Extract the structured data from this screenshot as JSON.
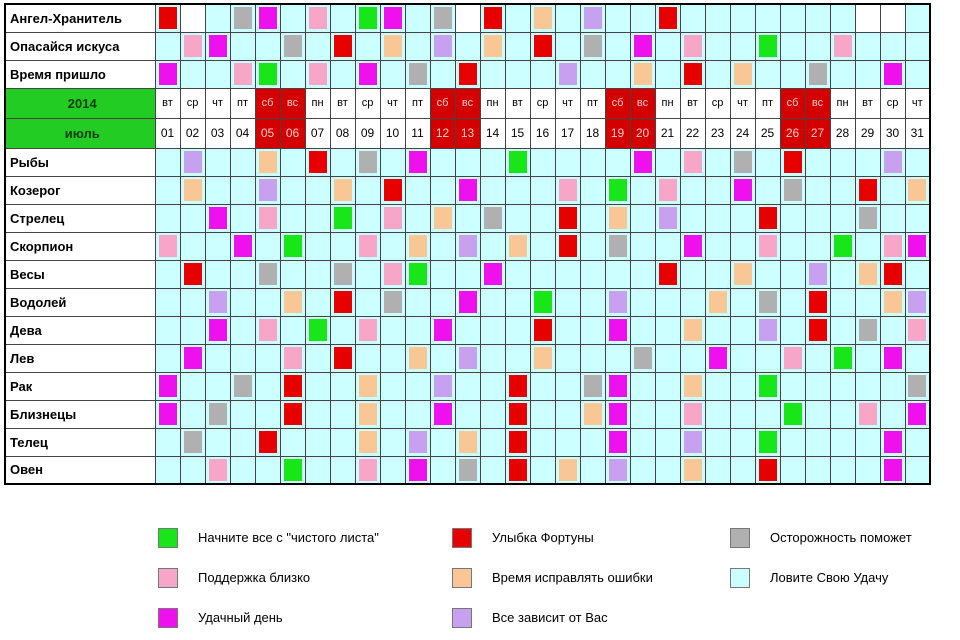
{
  "colors": {
    "G": "#19e619",
    "R": "#e60000",
    "Y": "#b0b0b0",
    "P": "#f7a6c8",
    "O": "#f9c796",
    "C": "#ccffff",
    "M": "#ee11ee",
    "L": "#c8a0f0",
    "W": "#ffffff"
  },
  "header": {
    "year": "2014",
    "month": "июль",
    "weekdays": [
      "вт",
      "ср",
      "чт",
      "пт",
      "сб",
      "вс",
      "пн",
      "вт",
      "ср",
      "чт",
      "пт",
      "сб",
      "вс",
      "пн",
      "вт",
      "ср",
      "чт",
      "пт",
      "сб",
      "вс",
      "пн",
      "вт",
      "ср",
      "чт",
      "пт",
      "сб",
      "вс",
      "пн",
      "вт",
      "ср",
      "чт"
    ],
    "dates": [
      "01",
      "02",
      "03",
      "04",
      "05",
      "06",
      "07",
      "08",
      "09",
      "10",
      "11",
      "12",
      "13",
      "14",
      "15",
      "16",
      "17",
      "18",
      "19",
      "20",
      "21",
      "22",
      "23",
      "24",
      "25",
      "26",
      "27",
      "28",
      "29",
      "30",
      "31"
    ],
    "weekend_flags": [
      0,
      0,
      0,
      0,
      1,
      1,
      0,
      0,
      0,
      0,
      0,
      1,
      1,
      0,
      0,
      0,
      0,
      0,
      1,
      1,
      0,
      0,
      0,
      0,
      0,
      1,
      1,
      0,
      0,
      0,
      0
    ]
  },
  "rows_top": [
    {
      "label": "Ангел-Хранитель",
      "cells": "RWCYMCPCGMCYWRCOCLCCRCCCCCCCWWC"
    },
    {
      "label": "Опасайся искуса",
      "cells": "CPMCCYCRCOCLCOCRCYCMCPCCGCCPCCC"
    },
    {
      "label": "Время пришло",
      "cells": "MCCPGCPCMCYCRCCCLCCOCRCOCCYCCMC"
    }
  ],
  "rows_bottom": [
    {
      "label": "Рыбы",
      "cells": "CLCCOCRCYCMCCCGCCCCMCPCYCRCCCLC"
    },
    {
      "label": "Козерог",
      "cells": "COCCLCCOCRCCMCCCPCGCPCCMCYCCRCO"
    },
    {
      "label": "Стрелец",
      "cells": "CCMCPCCGCPCOCYCCRCOCLCCCRCCCYCC"
    },
    {
      "label": "Скорпион",
      "cells": "PCCMCGCCPCOCLCOCRCYCCMCCPCCGCPM"
    },
    {
      "label": "Весы",
      "cells": "CRCCYCCYCPGCCMCCCCCCRCCOCCLCORC"
    },
    {
      "label": "Водолей",
      "cells": "CCLCCOCRCYCCMCCGCCLCCCOCYCRCCOL"
    },
    {
      "label": "Дева",
      "cells": "CCMCPCGCPCCMCCCRCCMCCOCCLCRCYCP"
    },
    {
      "label": "Лев",
      "cells": "CMCCCPCRCCOCLCCOCCCYCCMCCPCGCMC"
    },
    {
      "label": "Рак",
      "cells": "MCCYCRCCOCCLCCRCCYMCCOCCGCCCCCY"
    },
    {
      "label": "Близнецы",
      "cells": "MCYCCRCCOCCMCCRCCOMCCPCCCGCCPCM"
    },
    {
      "label": "Телец",
      "cells": "CYCCRCCCOCLCOCRCCCMCCLCCGCCCCMC"
    },
    {
      "label": "Овен",
      "cells": "CCPCCGCCPCMCYCRCOCLCCOCCRCCCCMC"
    }
  ],
  "legend": [
    {
      "color": "#19e619",
      "text": "Начните все с \"чистого листа\""
    },
    {
      "color": "#e60000",
      "text": "Улыбка Фортуны"
    },
    {
      "color": "#b0b0b0",
      "text": "Осторожность поможет"
    },
    {
      "color": "#f7a6c8",
      "text": "Поддержка близко"
    },
    {
      "color": "#f9c796",
      "text": "Время исправлять ошибки"
    },
    {
      "color": "#ccffff",
      "text": "Ловите Свою Удачу"
    },
    {
      "color": "#ee11ee",
      "text": "Удачный день"
    },
    {
      "color": "#c8a0f0",
      "text": "Все зависит от Вас"
    }
  ]
}
